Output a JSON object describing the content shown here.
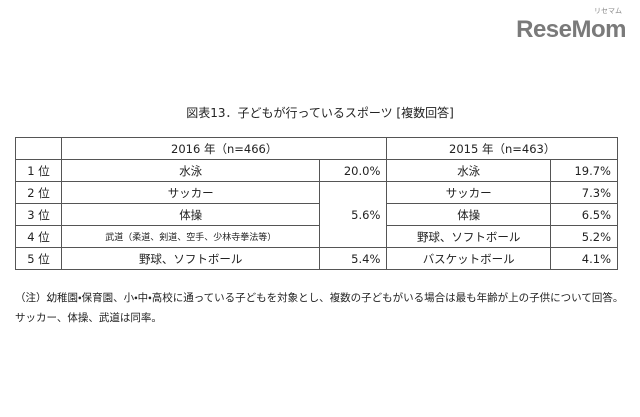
{
  "logo": {
    "subtext": "リセマム",
    "text": "ReseMom"
  },
  "title": "図表13．子どもが行っているスポーツ [複数回答]",
  "table": {
    "headers": [
      "2016 年（n=466）",
      "2015 年（n=463）"
    ],
    "rows": [
      [
        "1 位",
        "水泳",
        "20.0%",
        "水泳",
        "19.7%"
      ],
      [
        "2 位",
        "サッカー",
        "5.6%",
        "サッカー",
        "7.3%"
      ],
      [
        "3 位",
        "体操",
        "体操",
        "6.5%"
      ],
      [
        "4 位",
        "武道（柔道、剣道、空手、少林寺拳法等）",
        "野球、ソフトボール",
        "5.2%"
      ],
      [
        "5 位",
        "野球、ソフトボール",
        "5.4%",
        "バスケットボール",
        "4.1%"
      ]
    ]
  },
  "note": {
    "label": "（注）",
    "text": "幼稚園・保育園、小・中・高校に通っている子どもを対象とし、複数の子どもがいる場合は最も年齢が上の子供について回答。サッカー、体操、武道は同率。"
  }
}
